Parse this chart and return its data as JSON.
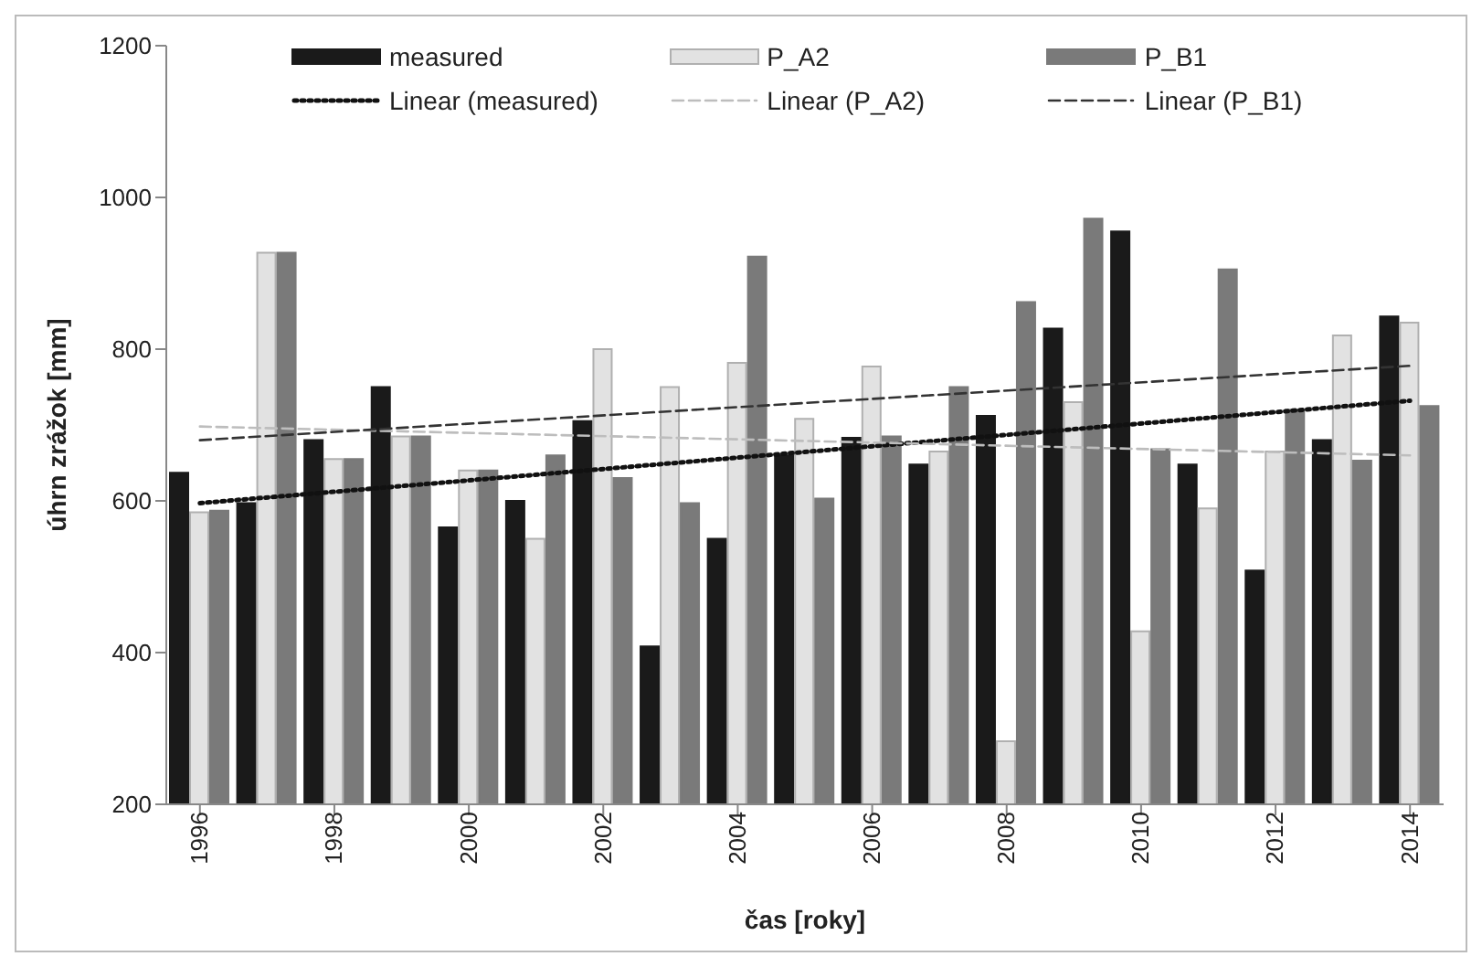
{
  "chart_data": {
    "type": "bar",
    "xlabel": "čas [roky]",
    "ylabel": "úhrn zrážok [mm]",
    "x": [
      1996,
      1997,
      1998,
      1999,
      2000,
      2001,
      2002,
      2003,
      2004,
      2005,
      2006,
      2007,
      2008,
      2009,
      2010,
      2011,
      2012,
      2013,
      2014
    ],
    "xlim": [
      1995.5,
      2014.5
    ],
    "xticks": [
      1996,
      1998,
      2000,
      2002,
      2004,
      2006,
      2008,
      2010,
      2012,
      2014
    ],
    "ylim": [
      200,
      1200
    ],
    "yticks": [
      200,
      400,
      600,
      800,
      1000,
      1200
    ],
    "grid": false,
    "legend": "top",
    "series": [
      {
        "name": "measured",
        "color": "#1a1a1a",
        "values": [
          637,
          597,
          680,
          750,
          565,
          600,
          705,
          408,
          550,
          660,
          683,
          648,
          712,
          827,
          955,
          648,
          508,
          680,
          843
        ]
      },
      {
        "name": "P_A2",
        "color": "#e2e2e2",
        "values": [
          585,
          927,
          655,
          685,
          640,
          550,
          800,
          750,
          782,
          708,
          777,
          665,
          283,
          730,
          428,
          590,
          665,
          818,
          835
        ]
      },
      {
        "name": "P_B1",
        "color": "#7a7a7a",
        "values": [
          587,
          927,
          655,
          685,
          640,
          660,
          630,
          597,
          922,
          603,
          685,
          750,
          862,
          972,
          668,
          905,
          720,
          653,
          725
        ]
      },
      {
        "name": "Linear (measured)",
        "type": "line",
        "color": "#111111",
        "line_style": "dotted",
        "values": [
          597,
          null,
          null,
          null,
          null,
          null,
          null,
          null,
          null,
          null,
          null,
          null,
          null,
          null,
          null,
          null,
          null,
          null,
          732
        ]
      },
      {
        "name": "Linear (P_A2)",
        "type": "line",
        "color": "#bdbdbd",
        "line_style": "dashed",
        "values": [
          698,
          null,
          null,
          null,
          null,
          null,
          null,
          null,
          null,
          null,
          null,
          null,
          null,
          null,
          null,
          null,
          null,
          null,
          660
        ]
      },
      {
        "name": "Linear (P_B1)",
        "type": "line",
        "color": "#333333",
        "line_style": "dashed",
        "values": [
          680,
          null,
          null,
          null,
          null,
          null,
          null,
          null,
          null,
          null,
          null,
          null,
          null,
          null,
          null,
          null,
          null,
          null,
          778
        ]
      }
    ]
  }
}
